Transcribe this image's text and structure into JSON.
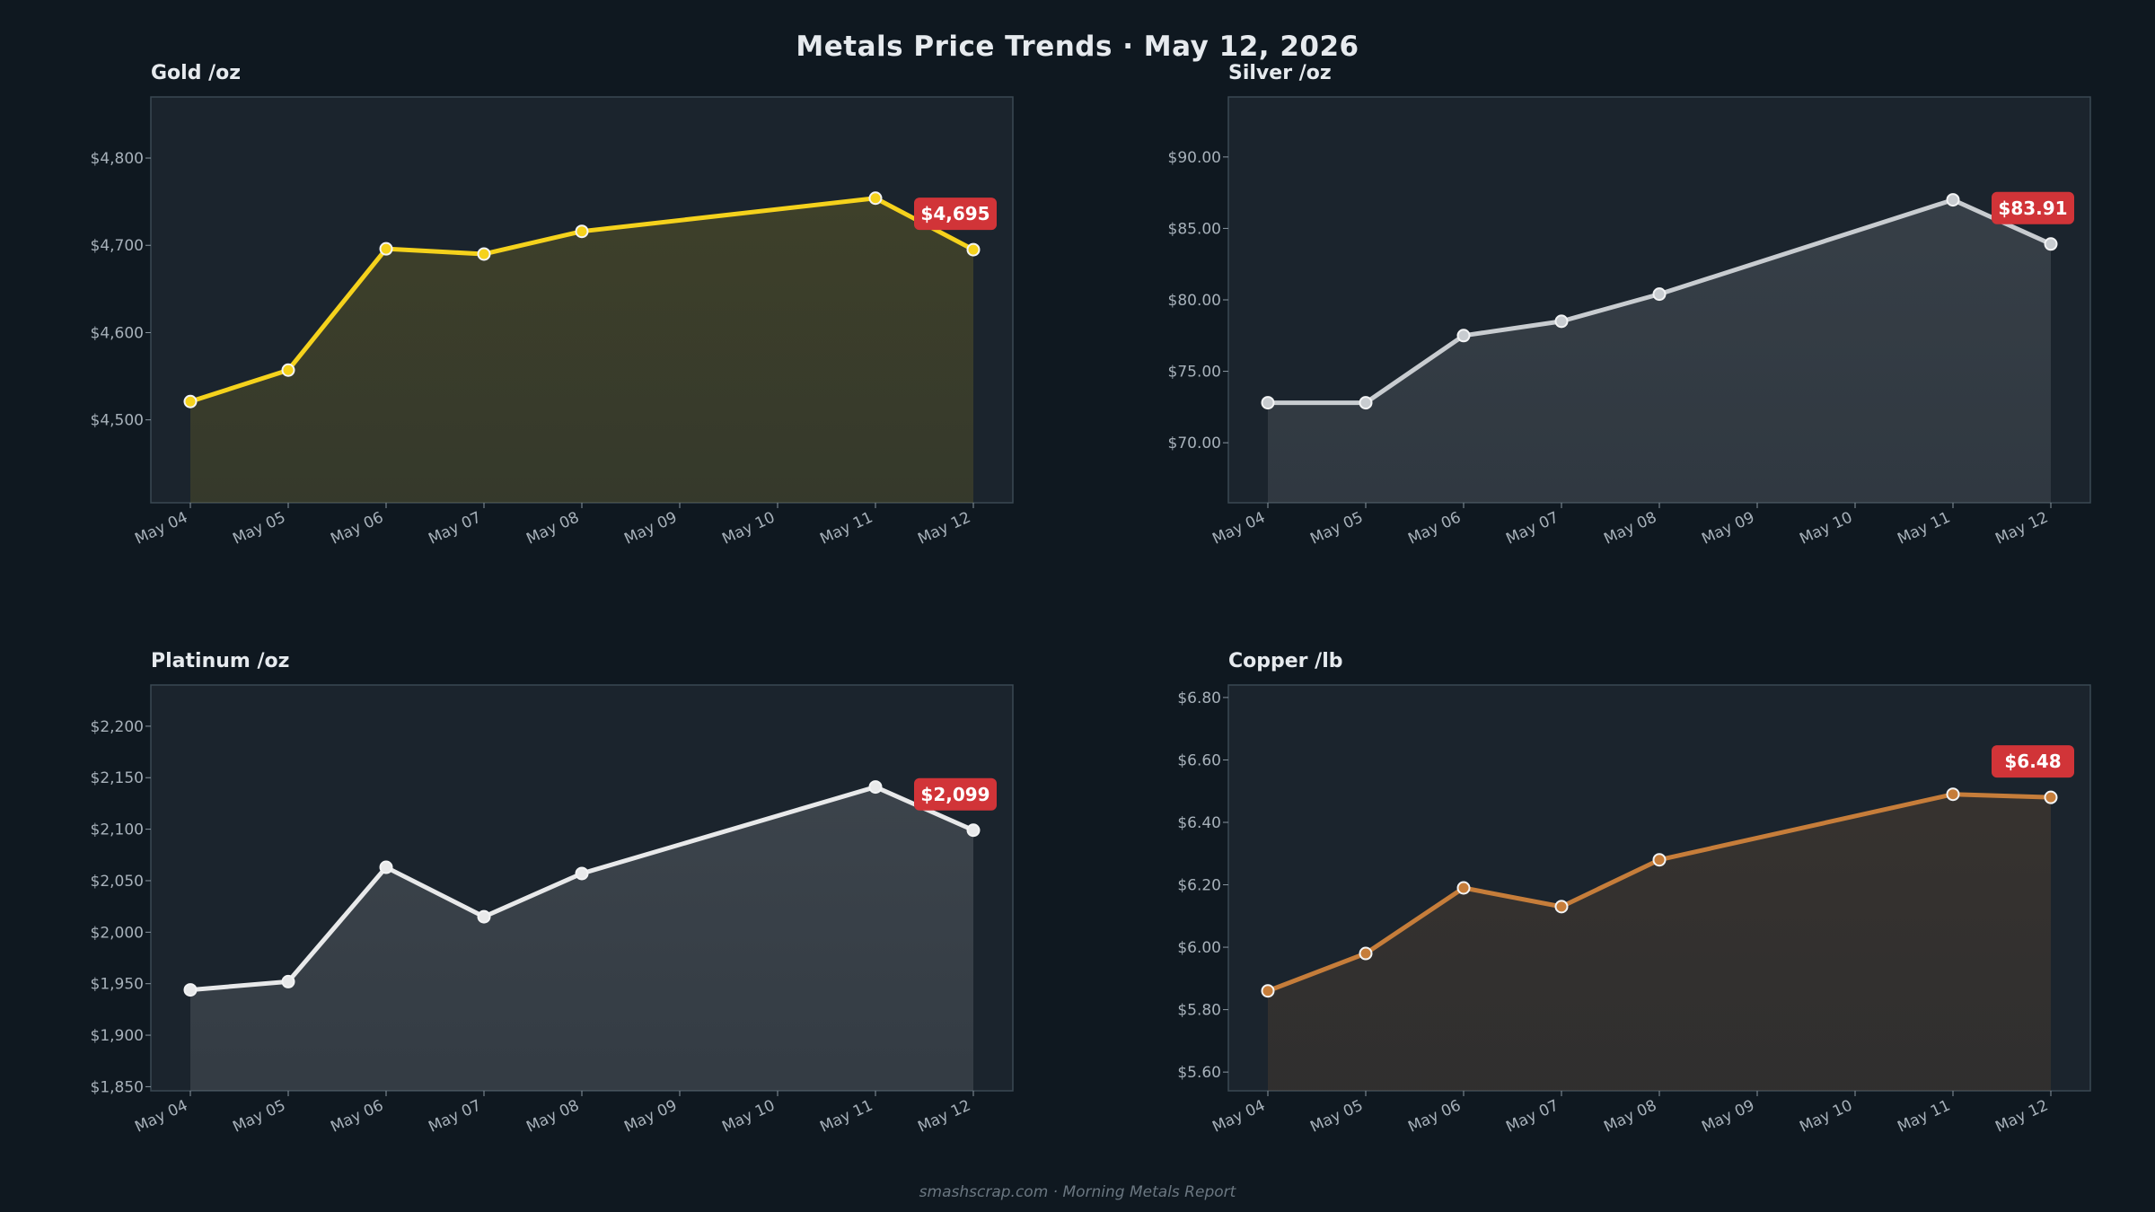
{
  "title": "Metals Price Trends  ·  May 12, 2026",
  "footer": "smashscrap.com  ·  Morning Metals Report",
  "colors": {
    "background": "#0f1820",
    "panel": "#1b242d",
    "panel_border": "#3a4853",
    "badge": "#d13438",
    "gold": "#f5d21c",
    "silver": "#c8ccd0",
    "platinum": "#e8e9ea",
    "copper": "#c67d3a"
  },
  "chart_data": [
    {
      "type": "area",
      "title": "Gold  /oz",
      "categories": [
        "May 04",
        "May 05",
        "May 06",
        "May 07",
        "May 08",
        "May 09",
        "May 10",
        "May 11",
        "May 12"
      ],
      "series": [
        {
          "color": "#f5d21c",
          "points": [
            {
              "x": "May 04",
              "y": 4521
            },
            {
              "x": "May 05",
              "y": 4557
            },
            {
              "x": "May 06",
              "y": 4696
            },
            {
              "x": "May 07",
              "y": 4690
            },
            {
              "x": "May 08",
              "y": 4716
            },
            {
              "x": "May 11",
              "y": 4754
            },
            {
              "x": "May 12",
              "y": 4695
            }
          ]
        }
      ],
      "ylim": [
        4405,
        4870
      ],
      "yticks": [
        4500,
        4600,
        4700,
        4800
      ],
      "ytick_labels": [
        "$4,500",
        "$4,600",
        "$4,700",
        "$4,800"
      ],
      "last_label": "$4,695",
      "grid": false
    },
    {
      "type": "area",
      "title": "Silver  /oz",
      "categories": [
        "May 04",
        "May 05",
        "May 06",
        "May 07",
        "May 08",
        "May 09",
        "May 10",
        "May 11",
        "May 12"
      ],
      "series": [
        {
          "color": "#c8ccd0",
          "points": [
            {
              "x": "May 04",
              "y": 72.8
            },
            {
              "x": "May 05",
              "y": 72.8
            },
            {
              "x": "May 06",
              "y": 77.5
            },
            {
              "x": "May 07",
              "y": 78.5
            },
            {
              "x": "May 08",
              "y": 80.4
            },
            {
              "x": "May 11",
              "y": 87.0
            },
            {
              "x": "May 12",
              "y": 83.91
            }
          ]
        }
      ],
      "ylim": [
        65.8,
        94.2
      ],
      "yticks": [
        70,
        75,
        80,
        85,
        90
      ],
      "ytick_labels": [
        "$70.00",
        "$75.00",
        "$80.00",
        "$85.00",
        "$90.00"
      ],
      "last_label": "$83.91",
      "grid": false
    },
    {
      "type": "area",
      "title": "Platinum  /oz",
      "categories": [
        "May 04",
        "May 05",
        "May 06",
        "May 07",
        "May 08",
        "May 09",
        "May 10",
        "May 11",
        "May 12"
      ],
      "series": [
        {
          "color": "#e8e9ea",
          "points": [
            {
              "x": "May 04",
              "y": 1944
            },
            {
              "x": "May 05",
              "y": 1952
            },
            {
              "x": "May 06",
              "y": 2063
            },
            {
              "x": "May 07",
              "y": 2015
            },
            {
              "x": "May 08",
              "y": 2057
            },
            {
              "x": "May 11",
              "y": 2141
            },
            {
              "x": "May 12",
              "y": 2099
            }
          ]
        }
      ],
      "ylim": [
        1846,
        2240
      ],
      "yticks": [
        1850,
        1900,
        1950,
        2000,
        2050,
        2100,
        2150,
        2200
      ],
      "ytick_labels": [
        "$1,850",
        "$1,900",
        "$1,950",
        "$2,000",
        "$2,050",
        "$2,100",
        "$2,150",
        "$2,200"
      ],
      "last_label": "$2,099",
      "grid": false
    },
    {
      "type": "area",
      "title": "Copper  /lb",
      "categories": [
        "May 04",
        "May 05",
        "May 06",
        "May 07",
        "May 08",
        "May 09",
        "May 10",
        "May 11",
        "May 12"
      ],
      "series": [
        {
          "color": "#c67d3a",
          "points": [
            {
              "x": "May 04",
              "y": 5.86
            },
            {
              "x": "May 05",
              "y": 5.98
            },
            {
              "x": "May 06",
              "y": 6.19
            },
            {
              "x": "May 07",
              "y": 6.13
            },
            {
              "x": "May 08",
              "y": 6.28
            },
            {
              "x": "May 11",
              "y": 6.49
            },
            {
              "x": "May 12",
              "y": 6.48
            }
          ]
        }
      ],
      "ylim": [
        5.54,
        6.84
      ],
      "yticks": [
        5.6,
        5.8,
        6.0,
        6.2,
        6.4,
        6.6,
        6.8
      ],
      "ytick_labels": [
        "$5.60",
        "$5.80",
        "$6.00",
        "$6.20",
        "$6.40",
        "$6.60",
        "$6.80"
      ],
      "last_label": "$6.48",
      "grid": false
    }
  ]
}
